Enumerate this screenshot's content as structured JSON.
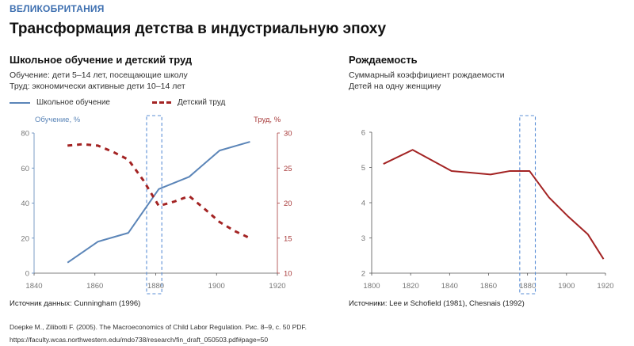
{
  "header": {
    "region": "ВЕЛИКОБРИТАНИЯ",
    "title": "Трансформация детства в индустриальную эпоху"
  },
  "left_panel": {
    "title": "Школьное обучение и детский труд",
    "subtitle_1": "Обучение: дети 5–14 лет, посещающие школу",
    "subtitle_2": "Труд: экономически активные дети 10–14 лет",
    "legend_school": "Школьное обучение",
    "legend_labor": "Детский труд",
    "y_left_label": "Обучение, %",
    "y_right_label": "Труд, %",
    "source": "Источник данных: Cunningham (1996)"
  },
  "right_panel": {
    "title": "Рождаемость",
    "subtitle_1": "Суммарный коэффициент рождаемости",
    "subtitle_2": "Детей на одну женщину",
    "source": "Источники: Lee и Schofield (1981), Chesnais (1992)"
  },
  "footer": {
    "reference": "Doepke M., Zilibotti F. (2005). The Macroeconomics of Child Labor Regulation. Рис. 8–9, с. 50 PDF.",
    "url": "https://faculty.wcas.northwestern.edu/mdo738/research/fin_draft_050503.pdf#page=50"
  },
  "colors": {
    "school": "#5b85b8",
    "labor": "#a32323",
    "fertility": "#a32323",
    "highlight": "#5b8fd6"
  },
  "chart_data": [
    {
      "type": "line",
      "title": "Школьное обучение и детский труд",
      "xlim": [
        1840,
        1920
      ],
      "x_ticks": [
        1840,
        1860,
        1880,
        1900,
        1920
      ],
      "y_left": {
        "label": "Обучение, %",
        "lim": [
          0,
          80
        ],
        "ticks": [
          0,
          20,
          40,
          60,
          80
        ]
      },
      "y_right": {
        "label": "Труд, %",
        "lim": [
          10,
          30
        ],
        "ticks": [
          10,
          15,
          20,
          25,
          30
        ]
      },
      "highlight_x_range": [
        1877,
        1882
      ],
      "grid": false,
      "legend_placement": "top",
      "series": [
        {
          "name": "Школьное обучение",
          "axis": "left",
          "style": "solid",
          "x": [
            1851,
            1861,
            1871,
            1881,
            1891,
            1901,
            1911
          ],
          "y": [
            6,
            18,
            23,
            48,
            55,
            70,
            75
          ]
        },
        {
          "name": "Детский труд",
          "axis": "right",
          "style": "dashed",
          "x": [
            1851,
            1856,
            1861,
            1866,
            1871,
            1876,
            1881,
            1886,
            1891,
            1896,
            1901,
            1906,
            1911
          ],
          "y": [
            28.2,
            28.4,
            28.2,
            27.3,
            26.2,
            23.2,
            19.6,
            20.2,
            21.0,
            19.2,
            17.3,
            16.0,
            15.0
          ]
        }
      ]
    },
    {
      "type": "line",
      "title": "Рождаемость",
      "xlim": [
        1800,
        1920
      ],
      "x_ticks": [
        1800,
        1820,
        1840,
        1860,
        1880,
        1900,
        1920
      ],
      "y": {
        "label": "",
        "lim": [
          2,
          6
        ],
        "ticks": [
          2,
          3,
          4,
          5,
          6
        ]
      },
      "highlight_x_range": [
        1876,
        1884
      ],
      "grid": false,
      "series": [
        {
          "name": "Суммарный коэффициент рождаемости",
          "style": "solid",
          "x": [
            1806,
            1821,
            1831,
            1841,
            1851,
            1861,
            1871,
            1876,
            1881,
            1891,
            1901,
            1911,
            1919
          ],
          "y": [
            5.1,
            5.5,
            5.2,
            4.9,
            4.85,
            4.8,
            4.9,
            4.9,
            4.9,
            4.15,
            3.6,
            3.1,
            2.4
          ]
        }
      ]
    }
  ]
}
